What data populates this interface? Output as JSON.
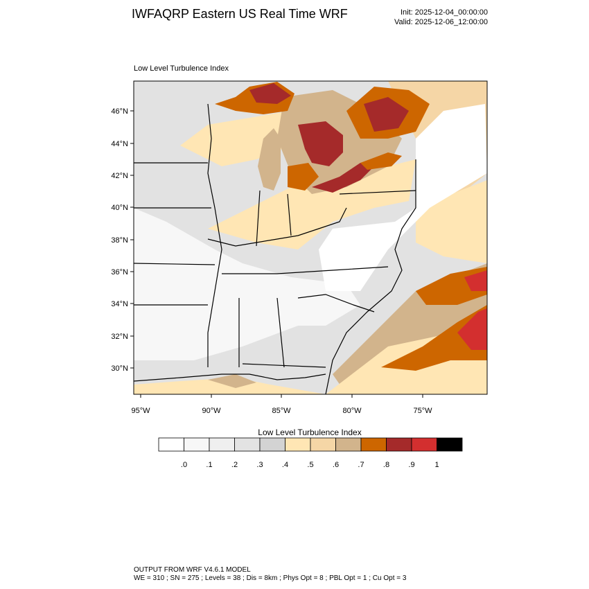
{
  "header": {
    "title": "IWFAQRP Eastern US Real Time WRF",
    "init": "Init: 2025-12-04_00:00:00",
    "valid": "Valid: 2025-12-06_12:00:00"
  },
  "map": {
    "title": "Low Level Turbulence Index",
    "lat_labels": [
      "46°N",
      "44°N",
      "42°N",
      "40°N",
      "38°N",
      "36°N",
      "34°N",
      "32°N",
      "30°N"
    ],
    "lon_labels": [
      "95°W",
      "90°W",
      "85°W",
      "80°W",
      "75°W"
    ],
    "background": "#e2e2e2",
    "state_border_color": "#000000"
  },
  "colorbar": {
    "title": "Low Level Turbulence Index",
    "labels": [
      ".0",
      ".1",
      ".2",
      ".3",
      ".4",
      ".5",
      ".6",
      ".7",
      ".8",
      ".9",
      "1"
    ],
    "colors": [
      "#ffffff",
      "#f7f7f7",
      "#efefef",
      "#e3e3e3",
      "#d3d3d3",
      "#ffe6b4",
      "#f5d6a6",
      "#d2b48c",
      "#cd6600",
      "#a52a2a",
      "#d32f2f",
      "#000000"
    ]
  },
  "footer": {
    "line1": "OUTPUT FROM WRF V4.6.1 MODEL",
    "line2": "WE = 310 ; SN = 275 ; Levels = 38 ; Dis = 8km ; Phys Opt = 8 ; PBL Opt = 1 ; Cu Opt = 3"
  }
}
